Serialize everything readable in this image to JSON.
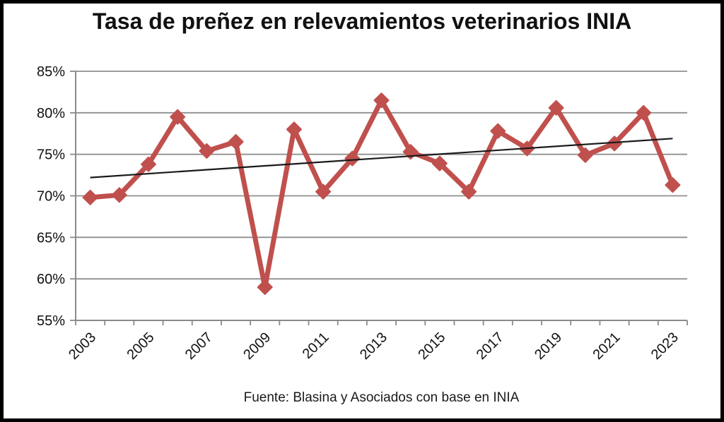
{
  "page": {
    "source": "Fuente: Blasina y Asociados con base en INIA"
  },
  "chart_data": {
    "type": "line",
    "title": "Tasa de preñez en relevamientos veterinarios INIA",
    "x": [
      2003,
      2004,
      2005,
      2006,
      2007,
      2008,
      2009,
      2010,
      2011,
      2012,
      2013,
      2014,
      2015,
      2016,
      2017,
      2018,
      2019,
      2020,
      2021,
      2022,
      2023
    ],
    "series": [
      {
        "name": "Tasa de preñez",
        "values": [
          69.8,
          70.1,
          73.8,
          79.5,
          75.4,
          76.5,
          59.0,
          78.0,
          70.5,
          74.5,
          81.5,
          75.3,
          73.9,
          70.5,
          77.8,
          75.7,
          80.6,
          74.9,
          76.3,
          80.0,
          71.3
        ],
        "marker": "diamond"
      }
    ],
    "trendline": {
      "start_value": 72.2,
      "end_value": 76.9
    },
    "ylim": [
      55,
      85
    ],
    "ytick_step": 5,
    "ytick_labels": [
      "55%",
      "60%",
      "65%",
      "70%",
      "75%",
      "80%",
      "85%"
    ],
    "xtick_labels_shown": [
      "2003",
      "2005",
      "2007",
      "2009",
      "2011",
      "2013",
      "2015",
      "2017",
      "2019",
      "2021",
      "2023"
    ],
    "grid": "horizontal-only",
    "legend": "none",
    "colors": {
      "series": "#c0504d",
      "trend": "#1a1a1a",
      "grid": "#8f8f8f",
      "axis": "#8a8a8a",
      "text": "#111111",
      "frame": "#000000"
    }
  }
}
